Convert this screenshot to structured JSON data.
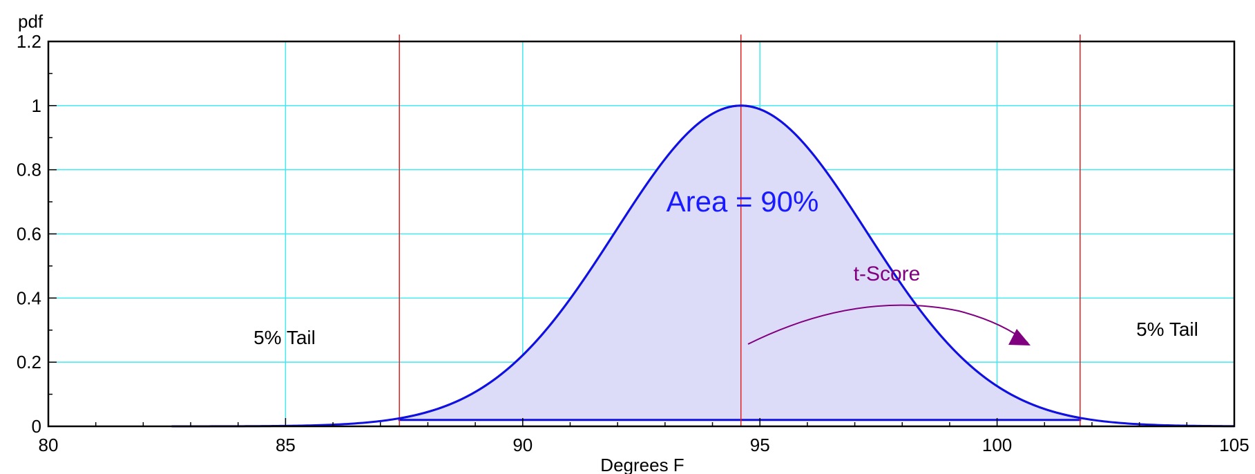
{
  "chart_data": {
    "type": "line",
    "title": "",
    "xlabel": "Degrees F",
    "ylabel": "pdf",
    "xlim": [
      80,
      105
    ],
    "ylim": [
      0,
      1.2
    ],
    "x_ticks": [
      80,
      85,
      90,
      95,
      100,
      105
    ],
    "x_tick_labels": [
      "80",
      "85",
      "90",
      "95",
      "100",
      "105"
    ],
    "y_ticks": [
      0,
      0.2,
      0.4,
      0.6,
      0.8,
      1.0,
      1.2
    ],
    "y_tick_labels": [
      "0",
      "0.2",
      "0.4",
      "0.6",
      "0.8",
      "1",
      "1.2"
    ],
    "grid": true,
    "curve": {
      "mean": 94.6,
      "sd": 2.65,
      "peak": 1.0,
      "x_start": 82.6,
      "x_end": 105
    },
    "critical_lines": [
      87.4,
      94.6,
      101.75
    ],
    "shaded_region": {
      "x_start": 87.4,
      "x_end": 101.75,
      "bottom": 0.02
    },
    "annotations": {
      "area_label": "Area = 90%",
      "left_tail_label": "5% Tail",
      "right_tail_label": "5% Tail",
      "tscore_label": "t-Score"
    },
    "colors": {
      "curve": "#1010e0",
      "fill": "#dcdcf8",
      "grid": "#40e8f0",
      "critical_line": "#e02020",
      "area_text": "#1a1aff",
      "tscore": "#800080",
      "axis": "#000000"
    }
  }
}
